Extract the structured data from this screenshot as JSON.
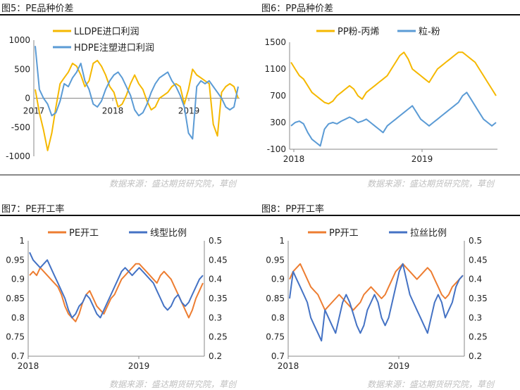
{
  "panels": [
    {
      "title": "图5：PE品种价差",
      "source": "数据来源：盛达期货研究院，草创"
    },
    {
      "title": "图6：PP品种价差",
      "source": "数据来源：盛达期货研究院，草创"
    },
    {
      "title": "图7：PE开工率",
      "source": "数据来源：盛达期货研究院，草创"
    },
    {
      "title": "图8：PP开工率",
      "source": "数据来源：盛达期货研究院，草创"
    }
  ],
  "colors": {
    "yellow": "#f5b800",
    "blue": "#5b9bd5",
    "orange": "#ed7d31",
    "darkblue": "#4472c4"
  },
  "chart_data": [
    {
      "type": "line",
      "ylim": [
        -1000,
        1000
      ],
      "yticks": [
        "1000",
        "500",
        "0",
        "-500",
        "-1000"
      ],
      "xticks": [
        "2017",
        "2018",
        "2019"
      ],
      "legend_placement": "top",
      "series": [
        {
          "name": "LLDPE进口利润",
          "color": "#f5b800",
          "values": [
            150,
            -250,
            -550,
            -900,
            -600,
            -150,
            250,
            350,
            450,
            600,
            550,
            400,
            200,
            300,
            600,
            650,
            550,
            400,
            200,
            100,
            -150,
            -100,
            50,
            250,
            400,
            250,
            150,
            -50,
            -200,
            -150,
            0,
            50,
            100,
            200,
            250,
            200,
            -100,
            150,
            500,
            400,
            350,
            300,
            250,
            -450,
            -650,
            100,
            200,
            250,
            200,
            0
          ]
        },
        {
          "name": "HDPE注塑进口利润",
          "color": "#5b9bd5",
          "values": [
            900,
            150,
            0,
            -100,
            -300,
            -250,
            -50,
            250,
            200,
            350,
            450,
            600,
            300,
            150,
            -100,
            -150,
            -50,
            150,
            300,
            400,
            450,
            350,
            200,
            50,
            -200,
            -300,
            -250,
            -100,
            100,
            250,
            350,
            400,
            450,
            300,
            200,
            50,
            -150,
            -600,
            -700,
            200,
            300,
            250,
            300,
            200,
            100,
            0,
            -150,
            -200,
            -150,
            200
          ]
        }
      ]
    },
    {
      "type": "line",
      "ylim": [
        -100,
        1500
      ],
      "yticks": [
        "1500",
        "1100",
        "700",
        "300",
        "-100"
      ],
      "xticks": [
        "2018",
        "2019"
      ],
      "legend_placement": "top",
      "series": [
        {
          "name": "PP粉-丙烯",
          "color": "#f5b800",
          "values": [
            1200,
            1100,
            1000,
            950,
            850,
            750,
            700,
            650,
            600,
            580,
            620,
            700,
            750,
            800,
            850,
            800,
            700,
            650,
            750,
            800,
            850,
            900,
            950,
            1000,
            1100,
            1200,
            1300,
            1350,
            1250,
            1100,
            1050,
            1000,
            950,
            900,
            1000,
            1100,
            1150,
            1200,
            1250,
            1300,
            1350,
            1350,
            1300,
            1250,
            1200,
            1100,
            1000,
            900,
            800,
            700
          ]
        },
        {
          "name": "粒-粉",
          "color": "#5b9bd5",
          "values": [
            250,
            300,
            320,
            280,
            150,
            50,
            0,
            -50,
            200,
            280,
            300,
            280,
            320,
            350,
            380,
            350,
            300,
            320,
            350,
            300,
            250,
            200,
            150,
            250,
            300,
            350,
            400,
            450,
            500,
            550,
            450,
            350,
            300,
            250,
            300,
            350,
            400,
            450,
            500,
            550,
            600,
            700,
            750,
            650,
            550,
            450,
            350,
            300,
            250,
            300
          ]
        }
      ]
    },
    {
      "type": "line",
      "ylim": [
        0.7,
        1.0
      ],
      "y2lim": [
        0.2,
        0.5
      ],
      "yticks": [
        "1",
        "0.95",
        "0.9",
        "0.85",
        "0.8",
        "0.75",
        "0.7"
      ],
      "y2ticks": [
        "0.5",
        "0.45",
        "0.4",
        "0.35",
        "0.3",
        "0.25",
        "0.2"
      ],
      "xticks": [
        "2018",
        "2019"
      ],
      "legend_placement": "top",
      "series": [
        {
          "name": "PE开工",
          "color": "#ed7d31",
          "axis": "left",
          "values": [
            0.91,
            0.92,
            0.91,
            0.93,
            0.92,
            0.91,
            0.9,
            0.89,
            0.88,
            0.86,
            0.83,
            0.81,
            0.8,
            0.79,
            0.81,
            0.84,
            0.86,
            0.87,
            0.85,
            0.83,
            0.82,
            0.81,
            0.83,
            0.85,
            0.86,
            0.88,
            0.9,
            0.91,
            0.92,
            0.93,
            0.94,
            0.94,
            0.93,
            0.92,
            0.91,
            0.9,
            0.89,
            0.91,
            0.92,
            0.91,
            0.9,
            0.88,
            0.86,
            0.84,
            0.82,
            0.8,
            0.82,
            0.85,
            0.87,
            0.89
          ]
        },
        {
          "name": "线型比例",
          "color": "#4472c4",
          "axis": "right",
          "values": [
            0.47,
            0.45,
            0.44,
            0.43,
            0.44,
            0.45,
            0.43,
            0.41,
            0.39,
            0.37,
            0.35,
            0.32,
            0.3,
            0.31,
            0.33,
            0.34,
            0.36,
            0.35,
            0.33,
            0.31,
            0.3,
            0.32,
            0.34,
            0.36,
            0.38,
            0.4,
            0.42,
            0.43,
            0.42,
            0.41,
            0.42,
            0.43,
            0.42,
            0.41,
            0.4,
            0.39,
            0.37,
            0.35,
            0.33,
            0.32,
            0.33,
            0.35,
            0.36,
            0.34,
            0.33,
            0.34,
            0.36,
            0.38,
            0.4,
            0.41
          ]
        }
      ]
    },
    {
      "type": "line",
      "ylim": [
        0.7,
        1.0
      ],
      "y2lim": [
        0.2,
        0.5
      ],
      "yticks": [
        "1",
        "0.95",
        "0.9",
        "0.85",
        "0.8",
        "0.75",
        "0.7"
      ],
      "y2ticks": [
        "0.5",
        "0.45",
        "0.4",
        "0.35",
        "0.3",
        "0.25",
        "0.2"
      ],
      "xticks": [
        "2018",
        "2019"
      ],
      "legend_placement": "top",
      "series": [
        {
          "name": "PP开工",
          "color": "#ed7d31",
          "axis": "left",
          "values": [
            0.9,
            0.92,
            0.93,
            0.94,
            0.92,
            0.9,
            0.88,
            0.87,
            0.86,
            0.84,
            0.82,
            0.83,
            0.84,
            0.85,
            0.86,
            0.85,
            0.84,
            0.83,
            0.82,
            0.83,
            0.84,
            0.86,
            0.87,
            0.88,
            0.87,
            0.86,
            0.85,
            0.86,
            0.88,
            0.9,
            0.92,
            0.93,
            0.94,
            0.93,
            0.92,
            0.91,
            0.9,
            0.91,
            0.92,
            0.93,
            0.92,
            0.9,
            0.88,
            0.86,
            0.85,
            0.86,
            0.88,
            0.89,
            0.9,
            0.91
          ]
        },
        {
          "name": "拉丝比例",
          "color": "#4472c4",
          "axis": "right",
          "values": [
            0.35,
            0.42,
            0.4,
            0.38,
            0.36,
            0.34,
            0.3,
            0.28,
            0.26,
            0.24,
            0.32,
            0.3,
            0.28,
            0.26,
            0.3,
            0.34,
            0.36,
            0.34,
            0.31,
            0.28,
            0.26,
            0.28,
            0.32,
            0.34,
            0.36,
            0.34,
            0.3,
            0.28,
            0.3,
            0.34,
            0.38,
            0.42,
            0.44,
            0.4,
            0.36,
            0.34,
            0.32,
            0.3,
            0.28,
            0.26,
            0.3,
            0.34,
            0.36,
            0.34,
            0.3,
            0.32,
            0.34,
            0.38,
            0.4,
            0.41
          ]
        }
      ]
    }
  ]
}
